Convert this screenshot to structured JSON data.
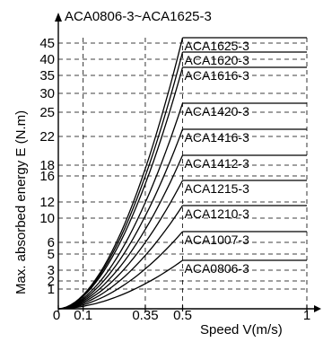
{
  "chart_data": {
    "type": "line",
    "title": "ACA0806-3~ACA1625-3",
    "xlabel": "Speed V(m/s)",
    "ylabel": "Max. absorbed energy E  (N.m)",
    "xlim": [
      0,
      1
    ],
    "ylim": [
      0,
      45
    ],
    "y_scale": "nonuniform (category-spaced ticks)",
    "grid": true,
    "grid_style": "dashed",
    "x_ticks": [
      0,
      0.1,
      0.35,
      0.5,
      1
    ],
    "x_tick_labels": [
      "0",
      "0.1",
      "0.35",
      "0.5",
      "1"
    ],
    "y_ticks": [
      1,
      2,
      3,
      5,
      6,
      10,
      12,
      16,
      18,
      22,
      25,
      30,
      35,
      40,
      45
    ],
    "y_tick_labels": [
      "1",
      "2",
      "3",
      "5",
      "6",
      "10",
      "12",
      "16",
      "18",
      "22",
      "25",
      "30",
      "35",
      "40",
      "45"
    ],
    "series": [
      {
        "name": "ACA1625-3",
        "max_speed": 0.5,
        "max_energy": 45
      },
      {
        "name": "ACA1620-3",
        "max_speed": 0.5,
        "max_energy": 40
      },
      {
        "name": "ACA1616-3",
        "max_speed": 0.5,
        "max_energy": 35
      },
      {
        "name": "ACA1420-3",
        "max_speed": 0.5,
        "max_energy": 25
      },
      {
        "name": "ACA1416-3",
        "max_speed": 0.5,
        "max_energy": 22
      },
      {
        "name": "ACA1412-3",
        "max_speed": 0.5,
        "max_energy": 18
      },
      {
        "name": "ACA1215-3",
        "max_speed": 0.5,
        "max_energy": 12
      },
      {
        "name": "ACA1210-3",
        "max_speed": 0.5,
        "max_energy": 10
      },
      {
        "name": "ACA1007-3",
        "max_speed": 0.5,
        "max_energy": 6
      },
      {
        "name": "ACA0806-3",
        "max_speed": 0.5,
        "max_energy": 3
      }
    ],
    "colors": {
      "line": "#000000",
      "grid": "#000000",
      "background": "#ffffff"
    }
  }
}
